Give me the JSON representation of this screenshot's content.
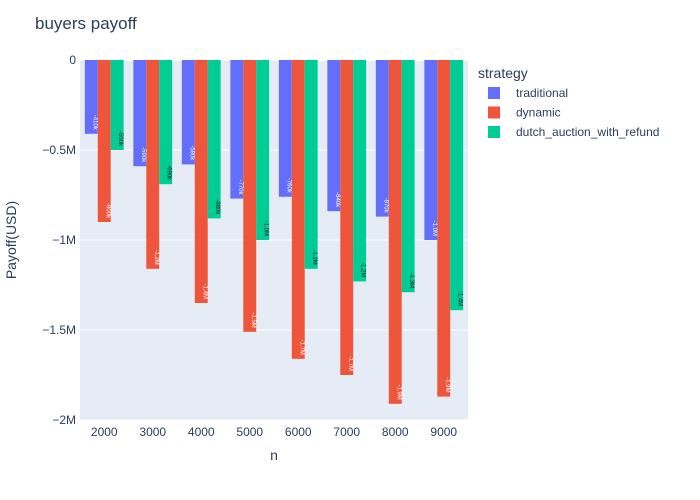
{
  "chart_data": {
    "type": "bar",
    "title": "buyers payoff",
    "xlabel": "n",
    "ylabel": "Payoff(USD)",
    "categories": [
      "2000",
      "3000",
      "4000",
      "5000",
      "6000",
      "7000",
      "8000",
      "9000"
    ],
    "ylim": [
      -2000000,
      0
    ],
    "yticks": [
      0,
      -500000,
      -1000000,
      -1500000,
      -2000000
    ],
    "ytick_labels": [
      "0",
      "−0.5M",
      "−1M",
      "−1.5M",
      "−2M"
    ],
    "legend": {
      "title": "strategy",
      "placement": "right"
    },
    "series": [
      {
        "name": "traditional",
        "color": "#636efa",
        "values": [
          -410000,
          -590000,
          -580000,
          -770000,
          -760000,
          -840000,
          -870000,
          -1000000
        ],
        "labels": [
          "-410k",
          "-590k",
          "-580k",
          "-770k",
          "-760k",
          "-840k",
          "-870k",
          "-1.0M"
        ]
      },
      {
        "name": "dynamic",
        "color": "#ef553b",
        "values": [
          -900000,
          -1160000,
          -1350000,
          -1510000,
          -1660000,
          -1750000,
          -1910000,
          -1870000
        ],
        "labels": [
          "-900k",
          "-1.2M",
          "-1.4M",
          "-1.5M",
          "-1.7M",
          "-1.7M",
          "-1.9M",
          "-1.9M"
        ]
      },
      {
        "name": "dutch_auction_with_refund",
        "color": "#00cc96",
        "values": [
          -500000,
          -690000,
          -880000,
          -1000000,
          -1160000,
          -1230000,
          -1290000,
          -1390000
        ],
        "labels": [
          "-500k",
          "-690k",
          "-880k",
          "-1.0M",
          "-1.2M",
          "-1.2M",
          "-1.3M",
          "-1.4M"
        ]
      }
    ]
  }
}
